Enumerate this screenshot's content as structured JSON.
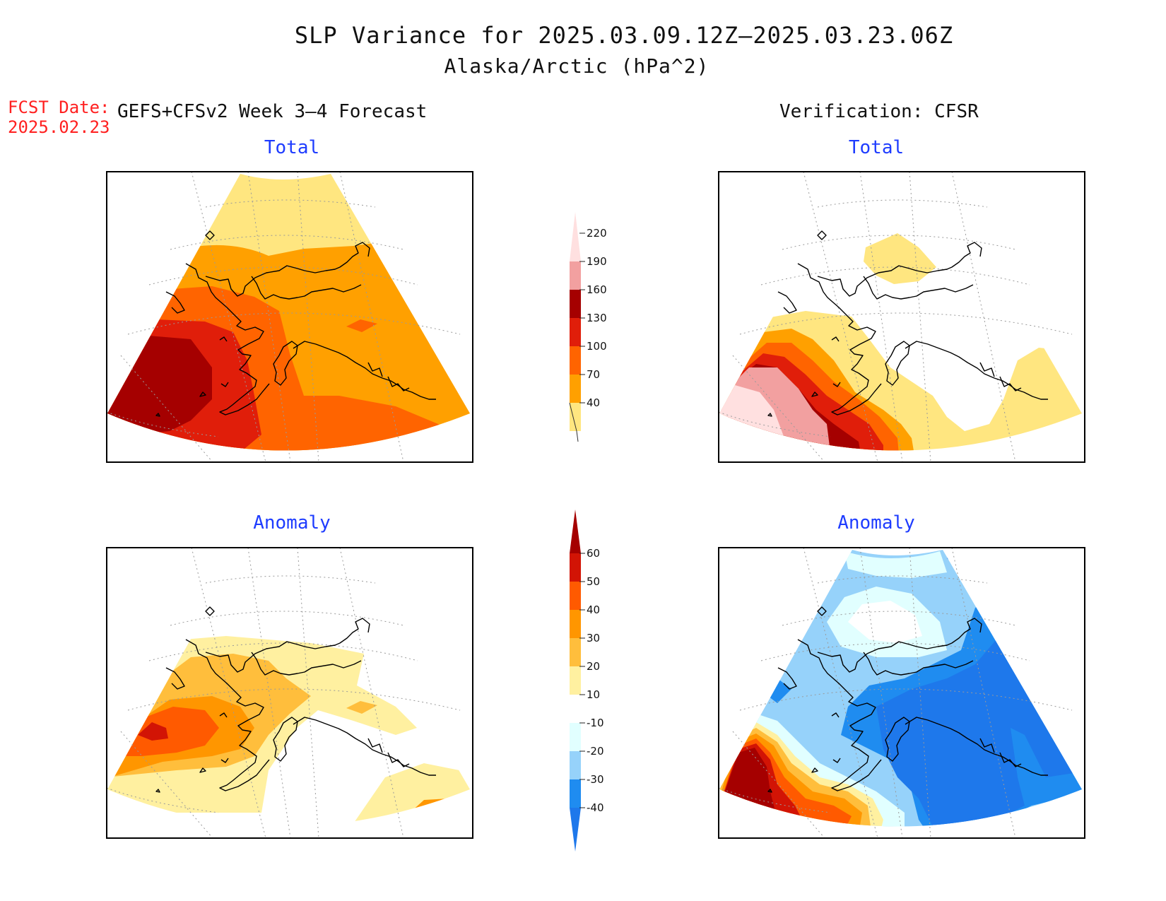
{
  "header": {
    "title": "SLP Variance for 2025.03.09.12Z–2025.03.23.06Z",
    "subtitle": "Alaska/Arctic (hPa^2)",
    "fcst_date_label": "FCST Date:",
    "fcst_date": "2025.02.23",
    "model_label": "GEFS+CFSv2 Week 3–4 Forecast",
    "verification_label": "Verification: CFSR"
  },
  "panels": {
    "forecast_total": {
      "title": "Total"
    },
    "verification_total": {
      "title": "Total"
    },
    "forecast_anomaly": {
      "title": "Anomaly"
    },
    "verification_anomaly": {
      "title": "Anomaly"
    }
  },
  "colorbars": {
    "total": {
      "ticks": [
        "40",
        "70",
        "100",
        "130",
        "160",
        "190",
        "220"
      ],
      "colors": [
        "#ffe680",
        "#ffa000",
        "#ff6400",
        "#e01e0a",
        "#a50000",
        "#f2a0a0",
        "#ffe0e0"
      ]
    },
    "anomaly": {
      "ticks": [
        "-40",
        "-30",
        "-20",
        "-10",
        "10",
        "20",
        "30",
        "40",
        "50",
        "60"
      ],
      "colors": [
        "#1e78eb",
        "#1f8cf0",
        "#96d2fa",
        "#e1ffff",
        "#ffffff",
        "#fff0a0",
        "#ffbe3c",
        "#ff9600",
        "#ff5a00",
        "#d21405",
        "#a50000"
      ]
    }
  },
  "map_colors": {
    "land_outline": "#000000",
    "grid": "#999999"
  }
}
